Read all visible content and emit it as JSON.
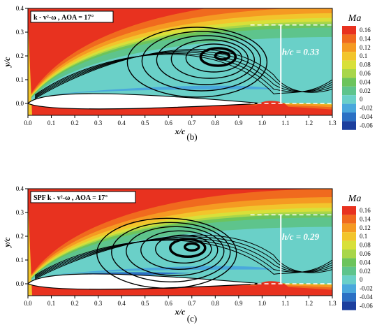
{
  "colormap": {
    "title": "Ma",
    "levels": [
      "0.16",
      "0.14",
      "0.12",
      "0.1",
      "0.08",
      "0.06",
      "0.04",
      "0.02",
      "0",
      "-0.02",
      "-0.04",
      "-0.06"
    ],
    "colors": [
      "#e8321f",
      "#f06a1e",
      "#f59a22",
      "#f2c52c",
      "#d8e03a",
      "#a8d64a",
      "#6cc45c",
      "#5ec48c",
      "#6ad0c8",
      "#4aa8dc",
      "#2b70c4",
      "#1c3f9e"
    ]
  },
  "chart_data": [
    {
      "type": "heatmap",
      "panel_label": "(b)",
      "legend_label": "k - v²-ω , AOA = 17°",
      "xlabel": "x/c",
      "ylabel": "y/c",
      "xlim": [
        0.0,
        1.3
      ],
      "ylim": [
        -0.05,
        0.4
      ],
      "xticks": [
        "0.0",
        "0.1",
        "0.2",
        "0.3",
        "0.4",
        "0.5",
        "0.6",
        "0.7",
        "0.8",
        "0.9",
        "1.0",
        "1.1",
        "1.2",
        "1.3"
      ],
      "yticks": [
        "0.0",
        "0.1",
        "0.2",
        "0.3",
        "0.4"
      ],
      "annotation": "h/c = 0.33",
      "separation_height": 0.33,
      "vortex_center": [
        0.83,
        0.2
      ]
    },
    {
      "type": "heatmap",
      "panel_label": "(c)",
      "legend_label": "SPF  k - v²-ω , AOA = 17°",
      "xlabel": "x/c",
      "ylabel": "y/c",
      "xlim": [
        0.0,
        1.3
      ],
      "ylim": [
        -0.05,
        0.4
      ],
      "xticks": [
        "0.0",
        "0.1",
        "0.2",
        "0.3",
        "0.4",
        "0.5",
        "0.6",
        "0.7",
        "0.8",
        "0.9",
        "1.0",
        "1.1",
        "1.2",
        "1.3"
      ],
      "yticks": [
        "0.0",
        "0.1",
        "0.2",
        "0.3",
        "0.4"
      ],
      "annotation": "h/c = 0.29",
      "separation_height": 0.29,
      "vortex_center": [
        0.7,
        0.155
      ]
    }
  ]
}
